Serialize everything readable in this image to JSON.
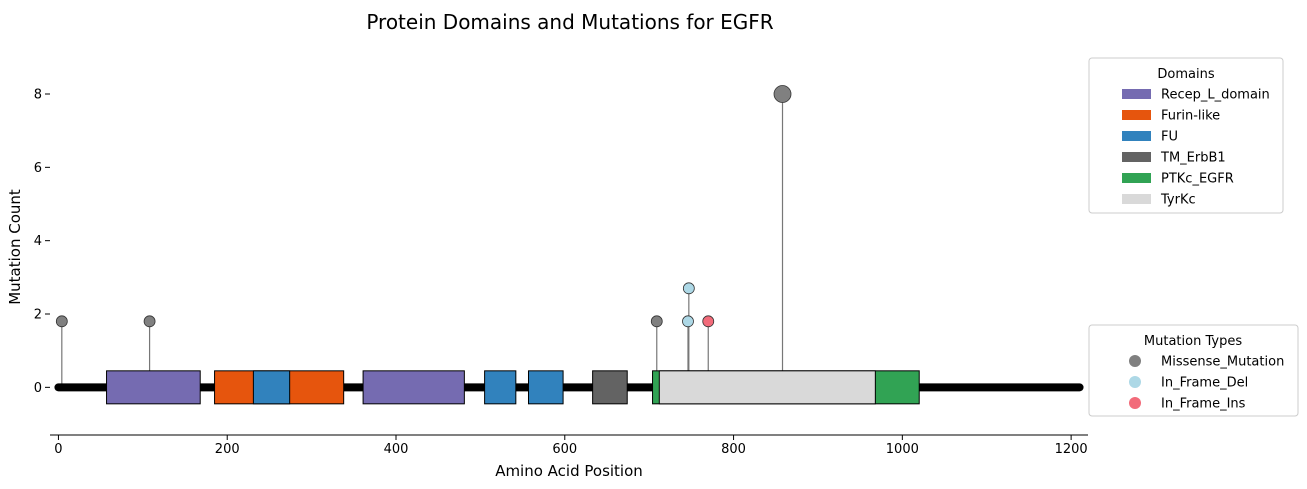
{
  "chart_data": {
    "type": "lollipop",
    "title": "Protein Domains and Mutations for EGFR",
    "xlabel": "Amino Acid Position",
    "ylabel": "Mutation Count",
    "xlim": [
      -10,
      1220
    ],
    "ylim": [
      -1.3,
      9.2
    ],
    "xticks": [
      0,
      200,
      400,
      600,
      800,
      1000,
      1200
    ],
    "yticks": [
      0,
      2,
      4,
      6,
      8
    ],
    "protein_length": 1210,
    "domains_legend_title": "Domains",
    "mutations_legend_title": "Mutation Types",
    "domain_types": [
      {
        "name": "Recep_L_domain",
        "color": "#756bb1"
      },
      {
        "name": "Furin-like",
        "color": "#e6550d"
      },
      {
        "name": "FU",
        "color": "#3182bd"
      },
      {
        "name": "TM_ErbB1",
        "color": "#636363"
      },
      {
        "name": "PTKc_EGFR",
        "color": "#31a354"
      },
      {
        "name": "TyrKc",
        "color": "#d9d9d9"
      }
    ],
    "domains": [
      {
        "name": "Recep_L_domain",
        "start": 57,
        "end": 168
      },
      {
        "name": "Furin-like",
        "start": 185,
        "end": 338
      },
      {
        "name": "FU",
        "start": 231,
        "end": 274
      },
      {
        "name": "Recep_L_domain",
        "start": 361,
        "end": 481
      },
      {
        "name": "FU",
        "start": 505,
        "end": 542
      },
      {
        "name": "FU",
        "start": 557,
        "end": 598
      },
      {
        "name": "TM_ErbB1",
        "start": 633,
        "end": 674
      },
      {
        "name": "PTKc_EGFR",
        "start": 704,
        "end": 1020
      },
      {
        "name": "TyrKc",
        "start": 712,
        "end": 968
      }
    ],
    "mutation_types": [
      {
        "name": "Missense_Mutation",
        "color": "#808080"
      },
      {
        "name": "In_Frame_Del",
        "color": "#add8e6"
      },
      {
        "name": "In_Frame_Ins",
        "color": "#f26b7a"
      }
    ],
    "mutations": [
      {
        "position": 4,
        "count": 1.8,
        "type": "Missense_Mutation"
      },
      {
        "position": 108,
        "count": 1.8,
        "type": "Missense_Mutation"
      },
      {
        "position": 709,
        "count": 1.8,
        "type": "Missense_Mutation"
      },
      {
        "position": 746,
        "count": 1.8,
        "type": "In_Frame_Del"
      },
      {
        "position": 747,
        "count": 2.7,
        "type": "In_Frame_Del"
      },
      {
        "position": 770,
        "count": 1.8,
        "type": "In_Frame_Ins"
      },
      {
        "position": 858,
        "count": 8,
        "type": "Missense_Mutation"
      }
    ]
  }
}
